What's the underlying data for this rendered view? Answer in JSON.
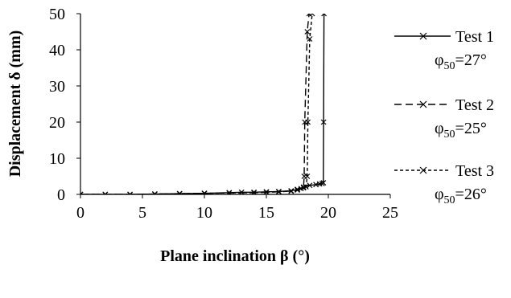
{
  "chart_data": {
    "type": "line",
    "title": "",
    "xlabel": "Plane inclination β (°)",
    "ylabel": "Displacement δ (mm)",
    "xlim": [
      0,
      25
    ],
    "ylim": [
      0,
      50
    ],
    "x_ticks": [
      "0",
      "5",
      "10",
      "15",
      "20",
      "25"
    ],
    "y_ticks": [
      "0",
      "10",
      "20",
      "30",
      "40",
      "50"
    ],
    "grid": false,
    "legend_position": "right",
    "series": [
      {
        "name": "Test 1",
        "note": "φ50=27°",
        "dash": "solid",
        "color": "#000000",
        "x": [
          0,
          2,
          4,
          6,
          8,
          10,
          12,
          13,
          14,
          15,
          16,
          17,
          17.5,
          18,
          18.5,
          19,
          19.3,
          19.5,
          19.6,
          19.62,
          19.65
        ],
        "y": [
          0,
          0,
          0,
          0.1,
          0.2,
          0.3,
          0.5,
          0.6,
          0.6,
          0.7,
          0.8,
          1.0,
          1.4,
          2.0,
          2.5,
          2.7,
          2.9,
          3.0,
          3.2,
          20,
          50
        ]
      },
      {
        "name": "Test 2",
        "note": "φ50=25°",
        "dash": "long-dash",
        "color": "#000000",
        "x": [
          0,
          2,
          4,
          6,
          8,
          10,
          12,
          14,
          15,
          16,
          17,
          17.5,
          17.8,
          18.0,
          18.05,
          18.1,
          18.3,
          18.45
        ],
        "y": [
          0,
          0,
          0,
          0.1,
          0.2,
          0.3,
          0.4,
          0.5,
          0.6,
          0.7,
          0.9,
          1.2,
          1.6,
          2.0,
          5,
          20,
          45,
          50
        ]
      },
      {
        "name": "Test 3",
        "note": "φ50=26°",
        "dash": "short-dash",
        "color": "#000000",
        "x": [
          0,
          2,
          4,
          6,
          8,
          10,
          12,
          14,
          15,
          16,
          17,
          17.5,
          18.0,
          18.2,
          18.3,
          18.35,
          18.5,
          18.7
        ],
        "y": [
          0,
          0,
          0,
          0.1,
          0.2,
          0.3,
          0.4,
          0.5,
          0.6,
          0.7,
          0.9,
          1.3,
          1.8,
          2.1,
          5,
          20,
          43,
          50
        ]
      }
    ]
  }
}
